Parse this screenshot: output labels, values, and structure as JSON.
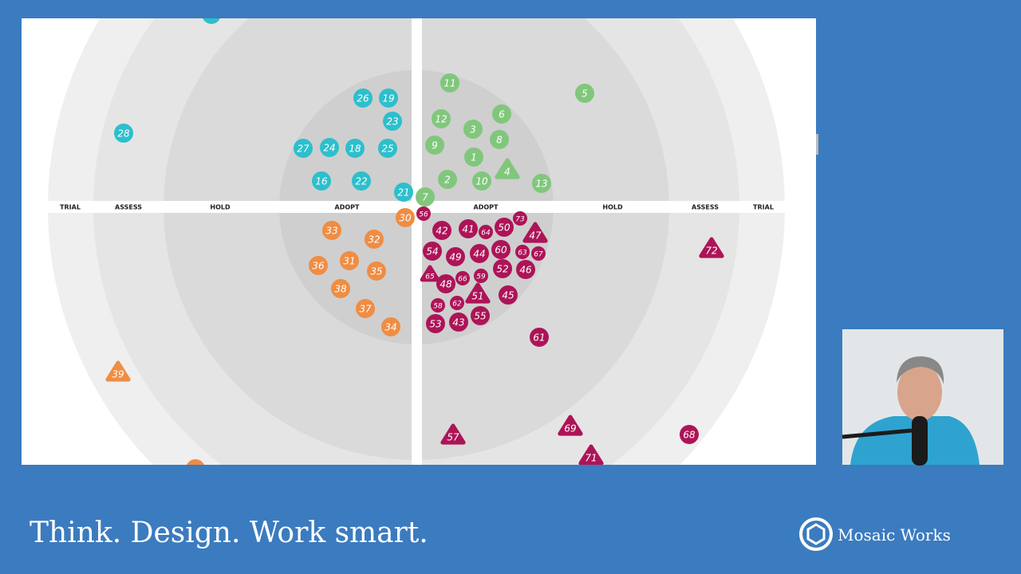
{
  "radar": {
    "ring_labels": [
      "TRIAL",
      "ASSESS",
      "HOLD",
      "ADOPT",
      "ADOPT",
      "HOLD",
      "ASSESS",
      "TRIAL"
    ],
    "quadrants": [
      {
        "color": "#2dbfcc",
        "blips": [
          {
            "label": "26",
            "shape": "circle"
          },
          {
            "label": "19",
            "shape": "circle"
          },
          {
            "label": "23",
            "shape": "circle"
          },
          {
            "label": "27",
            "shape": "circle"
          },
          {
            "label": "24",
            "shape": "circle"
          },
          {
            "label": "18",
            "shape": "circle"
          },
          {
            "label": "25",
            "shape": "circle"
          },
          {
            "label": "16",
            "shape": "circle"
          },
          {
            "label": "22",
            "shape": "circle"
          },
          {
            "label": "21",
            "shape": "circle"
          },
          {
            "label": "28",
            "shape": "circle"
          }
        ]
      },
      {
        "color": "#80c77c",
        "blips": [
          {
            "label": "11",
            "shape": "circle"
          },
          {
            "label": "5",
            "shape": "circle"
          },
          {
            "label": "12",
            "shape": "circle"
          },
          {
            "label": "6",
            "shape": "circle"
          },
          {
            "label": "3",
            "shape": "circle"
          },
          {
            "label": "8",
            "shape": "circle"
          },
          {
            "label": "9",
            "shape": "circle"
          },
          {
            "label": "1",
            "shape": "circle"
          },
          {
            "label": "4",
            "shape": "triangle"
          },
          {
            "label": "2",
            "shape": "circle"
          },
          {
            "label": "10",
            "shape": "circle"
          },
          {
            "label": "13",
            "shape": "circle"
          },
          {
            "label": "7",
            "shape": "circle"
          }
        ]
      },
      {
        "color": "#ef8d43",
        "blips": [
          {
            "label": "30",
            "shape": "circle"
          },
          {
            "label": "33",
            "shape": "circle"
          },
          {
            "label": "32",
            "shape": "circle"
          },
          {
            "label": "36",
            "shape": "circle"
          },
          {
            "label": "31",
            "shape": "circle"
          },
          {
            "label": "35",
            "shape": "circle"
          },
          {
            "label": "38",
            "shape": "circle"
          },
          {
            "label": "37",
            "shape": "circle"
          },
          {
            "label": "34",
            "shape": "circle"
          },
          {
            "label": "39",
            "shape": "triangle"
          }
        ]
      },
      {
        "color": "#ad1457",
        "blips": [
          {
            "label": "56",
            "shape": "circle",
            "small": true
          },
          {
            "label": "42",
            "shape": "circle"
          },
          {
            "label": "41",
            "shape": "circle"
          },
          {
            "label": "64",
            "shape": "circle",
            "small": true
          },
          {
            "label": "50",
            "shape": "circle"
          },
          {
            "label": "73",
            "shape": "circle",
            "small": true
          },
          {
            "label": "47",
            "shape": "triangle"
          },
          {
            "label": "54",
            "shape": "circle"
          },
          {
            "label": "49",
            "shape": "circle"
          },
          {
            "label": "44",
            "shape": "circle"
          },
          {
            "label": "60",
            "shape": "circle"
          },
          {
            "label": "63",
            "shape": "circle",
            "small": true
          },
          {
            "label": "67",
            "shape": "circle",
            "small": true
          },
          {
            "label": "72",
            "shape": "triangle"
          },
          {
            "label": "65",
            "shape": "triangle",
            "small": true
          },
          {
            "label": "48",
            "shape": "circle"
          },
          {
            "label": "66",
            "shape": "circle",
            "small": true
          },
          {
            "label": "59",
            "shape": "circle",
            "small": true
          },
          {
            "label": "52",
            "shape": "circle"
          },
          {
            "label": "46",
            "shape": "circle"
          },
          {
            "label": "51",
            "shape": "triangle"
          },
          {
            "label": "45",
            "shape": "circle"
          },
          {
            "label": "58",
            "shape": "circle",
            "small": true
          },
          {
            "label": "62",
            "shape": "circle",
            "small": true
          },
          {
            "label": "43",
            "shape": "circle"
          },
          {
            "label": "53",
            "shape": "circle"
          },
          {
            "label": "55",
            "shape": "circle"
          },
          {
            "label": "61",
            "shape": "circle"
          },
          {
            "label": "57",
            "shape": "triangle"
          },
          {
            "label": "69",
            "shape": "triangle"
          },
          {
            "label": "68",
            "shape": "circle"
          },
          {
            "label": "71",
            "shape": "triangle"
          }
        ]
      }
    ]
  },
  "footer": {
    "tagline": "Think. Design. Work smart.",
    "brand": "Mosaic Works"
  }
}
